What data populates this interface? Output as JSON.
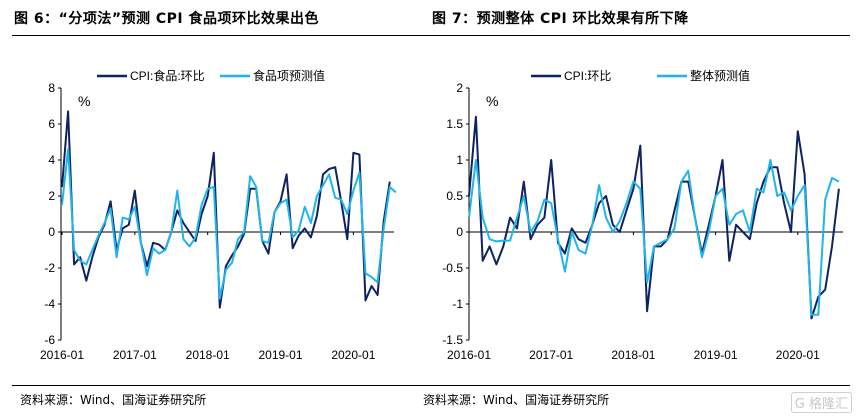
{
  "header": {
    "left_title": "图 6：“分项法”预测 CPI 食品项环比效果出色",
    "right_title": "图 7：预测整体 CPI 环比效果有所下降"
  },
  "footer": {
    "left_source": "资料来源：Wind、国海证券研究所",
    "right_source": "资料来源：Wind、国海证券研究所",
    "watermark": "格隆汇"
  },
  "chart_data": [
    {
      "type": "line",
      "title": "",
      "ylabel": "%",
      "xlabel": "",
      "ylim": [
        -6,
        8
      ],
      "yticks": [
        8,
        6,
        4,
        2,
        0,
        -2,
        -4,
        -6
      ],
      "x_start": "2016-01",
      "xtick_labels": [
        "2016-01",
        "2017-01",
        "2018-01",
        "2019-01",
        "2020-01"
      ],
      "legend": "top",
      "grid": false,
      "series": [
        {
          "name": "CPI:食品:环比",
          "color": "#0d2260",
          "values": [
            2.5,
            6.7,
            -1.8,
            -1.4,
            -2.7,
            -1.4,
            -0.3,
            0.4,
            1.7,
            -1.0,
            0.2,
            0.4,
            2.3,
            -0.6,
            -1.9,
            -0.6,
            -0.7,
            -1.0,
            0.0,
            1.2,
            0.5,
            0.0,
            -0.5,
            1.0,
            2.0,
            4.4,
            -4.2,
            -1.9,
            -1.3,
            -0.8,
            -0.1,
            2.4,
            2.4,
            -0.5,
            -1.2,
            1.1,
            1.7,
            3.2,
            -0.9,
            -0.2,
            0.2,
            -0.3,
            0.9,
            3.2,
            3.5,
            3.6,
            1.7,
            -0.4,
            4.4,
            4.3,
            -3.8,
            -3.0,
            -3.5,
            0.6,
            2.8,
            null
          ]
        },
        {
          "name": "食品项预测值",
          "color": "#1fb4ec",
          "values": [
            1.5,
            4.6,
            -1.0,
            -1.6,
            -1.8,
            -1.0,
            -0.2,
            0.5,
            1.3,
            -1.4,
            0.8,
            0.7,
            1.4,
            -0.6,
            -2.4,
            -0.9,
            -1.2,
            -1.0,
            0.0,
            2.3,
            -0.4,
            -0.8,
            -0.3,
            1.5,
            2.4,
            2.5,
            -3.7,
            -2.1,
            -1.7,
            -0.4,
            0.0,
            3.1,
            2.5,
            -0.5,
            -0.6,
            1.1,
            1.6,
            1.8,
            -0.3,
            0.1,
            1.4,
            0.5,
            2.0,
            2.6,
            3.2,
            1.9,
            1.8,
            1.0,
            2.3,
            3.3,
            -2.3,
            -2.5,
            -2.8,
            0.2,
            2.5,
            2.2
          ]
        }
      ]
    },
    {
      "type": "line",
      "title": "",
      "ylabel": "%",
      "xlabel": "",
      "ylim": [
        -1.5,
        2
      ],
      "yticks": [
        2,
        1.5,
        1,
        0.5,
        0,
        -0.5,
        -1,
        -1.5
      ],
      "x_start": "2016-01",
      "xtick_labels": [
        "2016-01",
        "2017-01",
        "2018-01",
        "2019-01",
        "2020-01"
      ],
      "legend": "top",
      "grid": false,
      "series": [
        {
          "name": "CPI:环比",
          "color": "#0d2260",
          "values": [
            0.5,
            1.6,
            -0.4,
            -0.2,
            -0.45,
            -0.2,
            0.2,
            0.05,
            0.7,
            -0.1,
            0.1,
            0.2,
            1.0,
            -0.15,
            -0.3,
            0.05,
            -0.1,
            -0.15,
            0.1,
            0.4,
            0.5,
            0.1,
            0.0,
            0.3,
            0.6,
            1.2,
            -1.1,
            -0.2,
            -0.2,
            -0.1,
            0.3,
            0.7,
            0.7,
            0.2,
            -0.3,
            0.1,
            0.5,
            1.0,
            -0.4,
            0.1,
            0.0,
            -0.1,
            0.4,
            0.7,
            0.9,
            0.9,
            0.4,
            0.0,
            1.4,
            0.8,
            -1.2,
            -0.9,
            -0.8,
            -0.2,
            0.6
          ]
        },
        {
          "name": "整体预测值",
          "color": "#1fb4ec",
          "values": [
            0.2,
            1.0,
            0.2,
            -0.1,
            -0.13,
            -0.12,
            -0.12,
            0.2,
            0.5,
            0.0,
            0.15,
            0.45,
            0.4,
            -0.1,
            -0.55,
            0.0,
            -0.25,
            -0.3,
            0.1,
            0.65,
            0.2,
            0.0,
            0.15,
            0.4,
            0.7,
            0.6,
            -0.7,
            -0.2,
            -0.15,
            -0.1,
            0.05,
            0.7,
            0.85,
            0.2,
            -0.35,
            0.0,
            0.5,
            0.6,
            0.1,
            0.25,
            0.3,
            0.0,
            0.6,
            0.55,
            1.0,
            0.5,
            0.55,
            0.3,
            0.5,
            0.65,
            -1.15,
            -1.15,
            0.45,
            0.75,
            0.7
          ]
        }
      ]
    }
  ]
}
